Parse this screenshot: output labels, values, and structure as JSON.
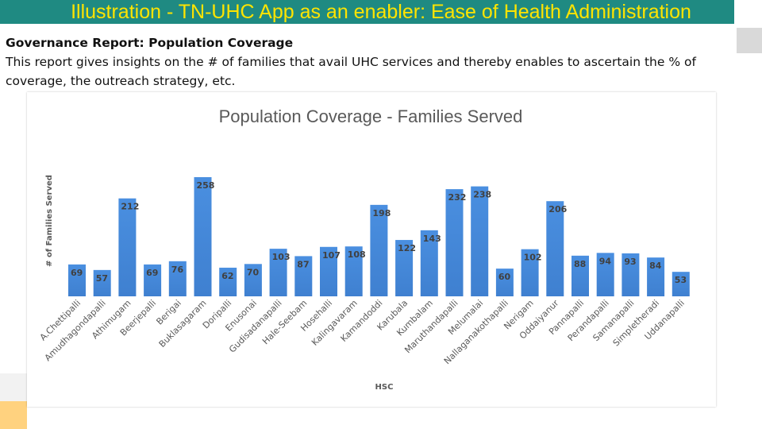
{
  "slide": {
    "title": "Illustration - TN-UHC App as an enabler: Ease of Health Administration",
    "report_heading": "Governance Report: Population Coverage",
    "report_description": "This report gives insights on the # of families that avail UHC services and thereby enables to ascertain the % of coverage, the outreach strategy, etc.",
    "title_color": "#ffe400",
    "title_bar_color": "#1f8a82"
  },
  "chart_data": {
    "type": "bar",
    "title": "Population Coverage - Families Served",
    "xlabel": "HSC",
    "ylabel": "# of Families Served",
    "ylim": [
      0,
      270
    ],
    "bar_color": "#3f80d0",
    "categories": [
      "A.Chettipalli",
      "Amudhagondapalli",
      "Athimugam",
      "Beerjepalli",
      "Berigai",
      "Buklasagaram",
      "Doripalli",
      "Enusonai",
      "Gudisadanapalli",
      "Hale-Seebam",
      "Hosehalli",
      "Kalingavaram",
      "Kamandoddi",
      "Karubala",
      "Kumbalam",
      "Maruthandapalli",
      "Melumalai",
      "Nallaganakothapalli",
      "Nerigam",
      "Oddaiyanur",
      "Pannapalli",
      "Perandapalli",
      "Samanapalli",
      "Simpletheradi",
      "Uddanapalli"
    ],
    "values": [
      69,
      57,
      212,
      69,
      76,
      258,
      62,
      70,
      103,
      87,
      107,
      108,
      198,
      122,
      143,
      232,
      238,
      60,
      102,
      206,
      88,
      94,
      93,
      84,
      53
    ],
    "grid": false,
    "legend": "none"
  }
}
